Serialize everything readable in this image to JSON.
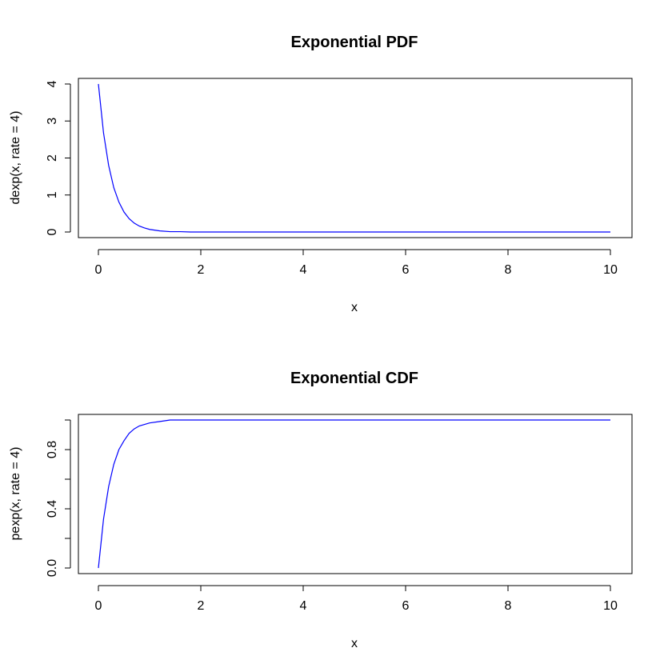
{
  "chart_data": [
    {
      "type": "line",
      "title": "Exponential PDF",
      "xlabel": "x",
      "ylabel": "dexp(x, rate = 4)",
      "xlim": [
        0,
        10
      ],
      "ylim": [
        0,
        4
      ],
      "xticks": [
        0,
        2,
        4,
        6,
        8,
        10
      ],
      "xtick_labels": [
        "0",
        "2",
        "4",
        "6",
        "8",
        "10"
      ],
      "yticks": [
        0,
        1,
        2,
        3,
        4
      ],
      "ytick_labels": [
        "0",
        "1",
        "2",
        "3",
        "4"
      ],
      "grid": false,
      "series": [
        {
          "color": "#0000ff",
          "x": [
            0,
            0.1,
            0.2,
            0.3,
            0.4,
            0.5,
            0.6,
            0.7,
            0.8,
            0.9,
            1.0,
            1.2,
            1.4,
            1.6,
            1.8,
            2.0,
            3,
            4,
            5,
            6,
            7,
            8,
            9,
            10
          ],
          "y": [
            4.0,
            2.68,
            1.8,
            1.2,
            0.81,
            0.54,
            0.36,
            0.24,
            0.16,
            0.11,
            0.07,
            0.03,
            0.01,
            0.01,
            0.0,
            0.0,
            0,
            0,
            0,
            0,
            0,
            0,
            0,
            0
          ]
        }
      ]
    },
    {
      "type": "line",
      "title": "Exponential CDF",
      "xlabel": "x",
      "ylabel": "pexp(x, rate = 4)",
      "xlim": [
        0,
        10
      ],
      "ylim": [
        0,
        1
      ],
      "xticks": [
        0,
        2,
        4,
        6,
        8,
        10
      ],
      "xtick_labels": [
        "0",
        "2",
        "4",
        "6",
        "8",
        "10"
      ],
      "yticks": [
        0,
        0.2,
        0.4,
        0.6,
        0.8,
        1.0
      ],
      "ytick_labels": [
        "0.0",
        "",
        "0.4",
        "",
        "0.8",
        ""
      ],
      "grid": false,
      "series": [
        {
          "color": "#0000ff",
          "x": [
            0,
            0.1,
            0.2,
            0.3,
            0.4,
            0.5,
            0.6,
            0.7,
            0.8,
            0.9,
            1.0,
            1.2,
            1.4,
            1.6,
            1.8,
            2.0,
            3,
            4,
            5,
            6,
            7,
            8,
            9,
            10
          ],
          "y": [
            0.0,
            0.33,
            0.55,
            0.7,
            0.8,
            0.86,
            0.91,
            0.94,
            0.96,
            0.97,
            0.98,
            0.99,
            1.0,
            1.0,
            1.0,
            1.0,
            1,
            1,
            1,
            1,
            1,
            1,
            1,
            1
          ]
        }
      ]
    }
  ]
}
